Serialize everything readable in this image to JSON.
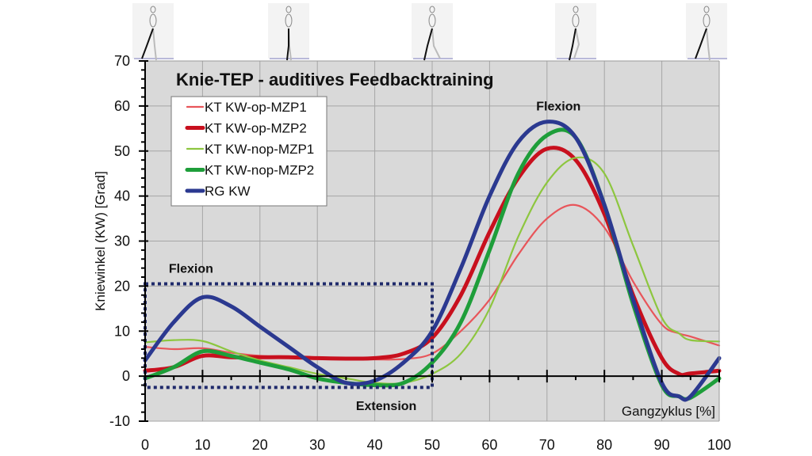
{
  "chart_data": {
    "type": "line",
    "title": "Knie-TEP - auditives Feedbacktraining",
    "xlabel": "Gangzyklus [%]",
    "ylabel": "Kniewinkel (KW) [Grad]",
    "xlim": [
      0,
      100
    ],
    "ylim": [
      -10,
      70
    ],
    "x_ticks": [
      0,
      10,
      20,
      30,
      40,
      50,
      60,
      70,
      80,
      90,
      100
    ],
    "y_ticks": [
      -10,
      0,
      10,
      20,
      30,
      40,
      50,
      60,
      70
    ],
    "x_tick_labels": [
      "0",
      "10",
      "20",
      "30",
      "40",
      "50",
      "60",
      "70",
      "80",
      "90",
      "100"
    ],
    "y_tick_labels": [
      "-10",
      "0",
      "10",
      "20",
      "30",
      "40",
      "50",
      "60",
      "70"
    ],
    "grid": true,
    "legend_position": "top-left",
    "annotations": [
      {
        "text": "Flexion",
        "x": 8,
        "y": 23
      },
      {
        "text": "Flexion",
        "x": 72,
        "y": 59
      },
      {
        "text": "Extension",
        "x": 42,
        "y": -7.5
      }
    ],
    "highlight_box": {
      "x_range": [
        0,
        50
      ],
      "y_range": [
        -2.5,
        20.5
      ],
      "style": "dotted"
    },
    "x": [
      0,
      5,
      10,
      15,
      20,
      25,
      30,
      35,
      40,
      45,
      50,
      55,
      60,
      65,
      70,
      75,
      80,
      85,
      90,
      93,
      95,
      100
    ],
    "series": [
      {
        "name": "KT KW-op-MZP1",
        "color": "#e8555a",
        "width": "thin",
        "values": [
          6.5,
          6,
          6.2,
          5.2,
          4.5,
          4.2,
          4,
          3.8,
          3.7,
          3.8,
          5,
          10,
          17,
          27,
          35,
          38,
          33,
          21,
          11.5,
          9.5,
          8.8,
          6.8
        ]
      },
      {
        "name": "KT KW-op-MZP2",
        "color": "#c8101e",
        "width": "thick",
        "values": [
          1.2,
          2,
          4.5,
          4.2,
          4.2,
          4.2,
          4,
          3.9,
          4,
          5,
          8.5,
          18,
          32,
          44,
          50.5,
          48,
          36,
          18,
          4,
          0.5,
          0.6,
          1.2
        ]
      },
      {
        "name": "KT KW-nop-MZP1",
        "color": "#8dc63f",
        "width": "thin",
        "values": [
          7.5,
          8,
          7.8,
          5.5,
          3.5,
          2,
          0.5,
          -0.5,
          -1.5,
          -1.5,
          0.5,
          5,
          15,
          31,
          43,
          48.5,
          45,
          29,
          13,
          9.5,
          8,
          7.7
        ]
      },
      {
        "name": "KT KW-nop-MZP2",
        "color": "#1e9e3a",
        "width": "thick",
        "values": [
          -0.5,
          2,
          5.5,
          4.5,
          3,
          1.5,
          -0.5,
          -1.5,
          -2,
          -1.5,
          3,
          12,
          28,
          45,
          53.5,
          53,
          38,
          16,
          -2,
          -4.5,
          -4.8,
          -0.5
        ]
      },
      {
        "name": "RG KW",
        "color": "#2b3990",
        "width": "thick",
        "values": [
          3.5,
          12,
          17.5,
          15.5,
          11,
          6.5,
          2,
          -1.5,
          -1,
          3,
          10,
          24,
          40,
          52,
          56.5,
          53,
          38,
          17,
          -1.5,
          -4.5,
          -4.5,
          4
        ]
      }
    ]
  },
  "legend": {
    "items": [
      {
        "label": "KT KW-op-MZP1"
      },
      {
        "label": "KT KW-op-MZP2"
      },
      {
        "label": "KT KW-nop-MZP1"
      },
      {
        "label": "KT KW-nop-MZP2"
      },
      {
        "label": "RG KW"
      }
    ]
  },
  "gait_figures": {
    "count": 5,
    "positions_percent": [
      0,
      25,
      50,
      75,
      100
    ],
    "description": "Gangphasen-Skelettfiguren"
  }
}
